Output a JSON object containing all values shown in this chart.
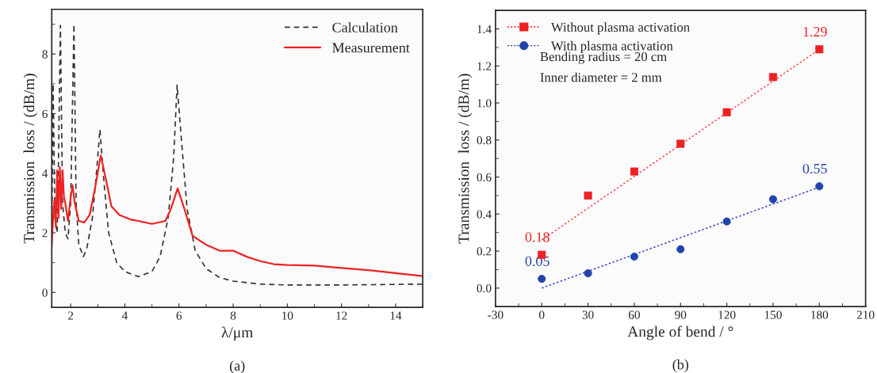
{
  "chart_data": [
    {
      "type": "line",
      "xlabel": "λ/μm",
      "ylabel": "Transmission  loss / (dB/m)",
      "xlim": [
        1.3,
        15
      ],
      "ylim": [
        -0.5,
        9.5
      ],
      "xticks": [
        2,
        4,
        6,
        8,
        10,
        12,
        14
      ],
      "yticks": [
        0,
        2,
        4,
        6,
        8
      ],
      "grid": false,
      "legend": "top right",
      "annotations": [
        "(a)"
      ],
      "series": [
        {
          "name": "Calculation",
          "color": "#333333",
          "line_style": "dashed",
          "x": [
            1.3,
            1.35,
            1.42,
            1.5,
            1.55,
            1.62,
            1.7,
            1.8,
            1.9,
            2.0,
            2.12,
            2.2,
            2.3,
            2.47,
            2.6,
            2.8,
            2.95,
            3.08,
            3.2,
            3.4,
            3.7,
            4.0,
            4.5,
            5.0,
            5.3,
            5.6,
            5.8,
            5.93,
            6.1,
            6.3,
            6.6,
            7.0,
            7.5,
            8.0,
            9.0,
            10.0,
            12.0,
            14.0,
            15.0
          ],
          "values": [
            1.5,
            7.0,
            2.5,
            2.0,
            4.5,
            8.96,
            3.0,
            2.0,
            1.8,
            3.0,
            9.0,
            3.0,
            1.6,
            1.2,
            1.5,
            2.5,
            4.0,
            5.47,
            4.0,
            2.0,
            1.0,
            0.7,
            0.53,
            0.7,
            1.2,
            2.5,
            4.5,
            6.96,
            5.0,
            2.8,
            1.4,
            0.8,
            0.5,
            0.38,
            0.28,
            0.25,
            0.25,
            0.27,
            0.28
          ]
        },
        {
          "name": "Measurement",
          "color": "#ee2222",
          "line_style": "solid",
          "x": [
            1.3,
            1.35,
            1.4,
            1.45,
            1.5,
            1.55,
            1.6,
            1.65,
            1.7,
            1.75,
            1.8,
            1.9,
            2.0,
            2.07,
            2.15,
            2.3,
            2.5,
            2.7,
            2.9,
            3.11,
            3.3,
            3.5,
            3.8,
            4.2,
            4.5,
            5.0,
            5.5,
            5.7,
            5.95,
            6.2,
            6.5,
            7.0,
            7.5,
            8.0,
            8.5,
            9.0,
            9.5,
            10.0,
            11.0,
            12.0,
            13.0,
            14.0,
            15.0
          ],
          "values": [
            1.6,
            2.5,
            3.1,
            2.2,
            4.1,
            2.5,
            4.2,
            2.8,
            4.1,
            3.2,
            3.0,
            2.4,
            3.2,
            3.6,
            3.0,
            2.4,
            2.35,
            2.6,
            3.5,
            4.6,
            3.8,
            2.9,
            2.6,
            2.45,
            2.4,
            2.3,
            2.4,
            2.8,
            3.49,
            2.8,
            1.9,
            1.6,
            1.4,
            1.4,
            1.2,
            1.05,
            0.95,
            0.92,
            0.9,
            0.82,
            0.75,
            0.65,
            0.55
          ]
        }
      ]
    },
    {
      "type": "scatter",
      "xlabel": "Angle of bend / °",
      "ylabel": "Transmission  loss / (dB/m)",
      "xlim": [
        -30,
        210
      ],
      "ylim": [
        -0.1,
        1.5
      ],
      "xticks": [
        -30,
        0,
        30,
        60,
        90,
        120,
        150,
        180,
        210
      ],
      "yticks": [
        {
          "value": 0,
          "label": "0.0"
        },
        0.2,
        0.4,
        0.6,
        0.8,
        {
          "value": 1,
          "label": "1.0"
        },
        1.2,
        1.4
      ],
      "grid": false,
      "legend": "top left",
      "annotations": [
        "Bending radius = 20 cm",
        "Inner diameter = 2 mm",
        "(b)"
      ],
      "series": [
        {
          "name": "Without plasma activation",
          "color": "#ee2222",
          "marker": "square",
          "x": [
            0,
            30,
            60,
            90,
            120,
            150,
            180
          ],
          "values": [
            0.18,
            0.5,
            0.63,
            0.78,
            0.95,
            1.14,
            1.29
          ],
          "value_labels": [
            "0.18",
            null,
            null,
            null,
            null,
            null,
            "1.29"
          ]
        },
        {
          "name": "With plasma activation",
          "color": "#2244aa",
          "marker": "circle",
          "x": [
            0,
            30,
            60,
            90,
            120,
            150,
            180
          ],
          "values": [
            0.05,
            0.08,
            0.17,
            0.21,
            0.36,
            0.48,
            0.55
          ],
          "value_labels": [
            "0.05",
            null,
            null,
            null,
            null,
            null,
            "0.55"
          ]
        },
        {
          "type": "line",
          "color": "#ff5555",
          "line_style": "dotted",
          "x": [
            0,
            180
          ],
          "values": [
            0.26,
            1.29
          ]
        },
        {
          "type": "line",
          "color": "#4455cc",
          "line_style": "dotted",
          "x": [
            0,
            180
          ],
          "values": [
            0.0,
            0.545
          ]
        }
      ]
    }
  ]
}
